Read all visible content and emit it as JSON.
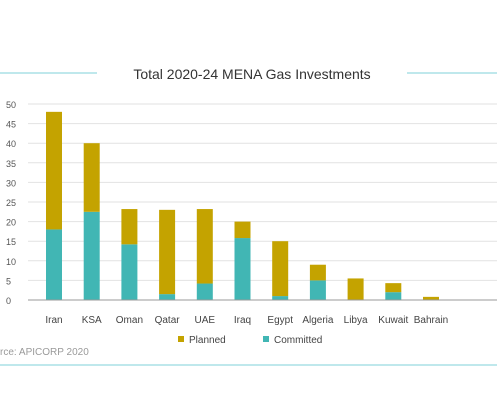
{
  "chart_data": {
    "type": "bar",
    "stacked": true,
    "title": "Total 2020-24 MENA Gas Investments",
    "categories": [
      "Iran",
      "KSA",
      "Oman",
      "Qatar",
      "UAE",
      "Iraq",
      "Egypt",
      "Algeria",
      "Libya",
      "Kuwait",
      "Bahrain"
    ],
    "series": [
      {
        "name": "Committed",
        "values": [
          18,
          22.5,
          14.2,
          1.5,
          4.2,
          15.8,
          1.0,
          5.0,
          0,
          2.0,
          0
        ],
        "color": "#41b6b4"
      },
      {
        "name": "Planned",
        "values": [
          30,
          17.5,
          9.0,
          21.5,
          19.0,
          4.2,
          14.0,
          4.0,
          5.5,
          2.3,
          0.8
        ],
        "color": "#c4a300"
      }
    ],
    "ylim": [
      0,
      50
    ],
    "yticks": [
      0,
      5,
      10,
      15,
      20,
      25,
      30,
      35,
      40,
      45,
      50
    ],
    "grid": true,
    "legend_position": "bottom",
    "legend_order": [
      "Planned",
      "Committed"
    ],
    "source": "rce: APICORP 2020",
    "colors": {
      "rule": "#7fd0d8",
      "grid": "#e2e2e2",
      "axis": "#999999"
    }
  }
}
